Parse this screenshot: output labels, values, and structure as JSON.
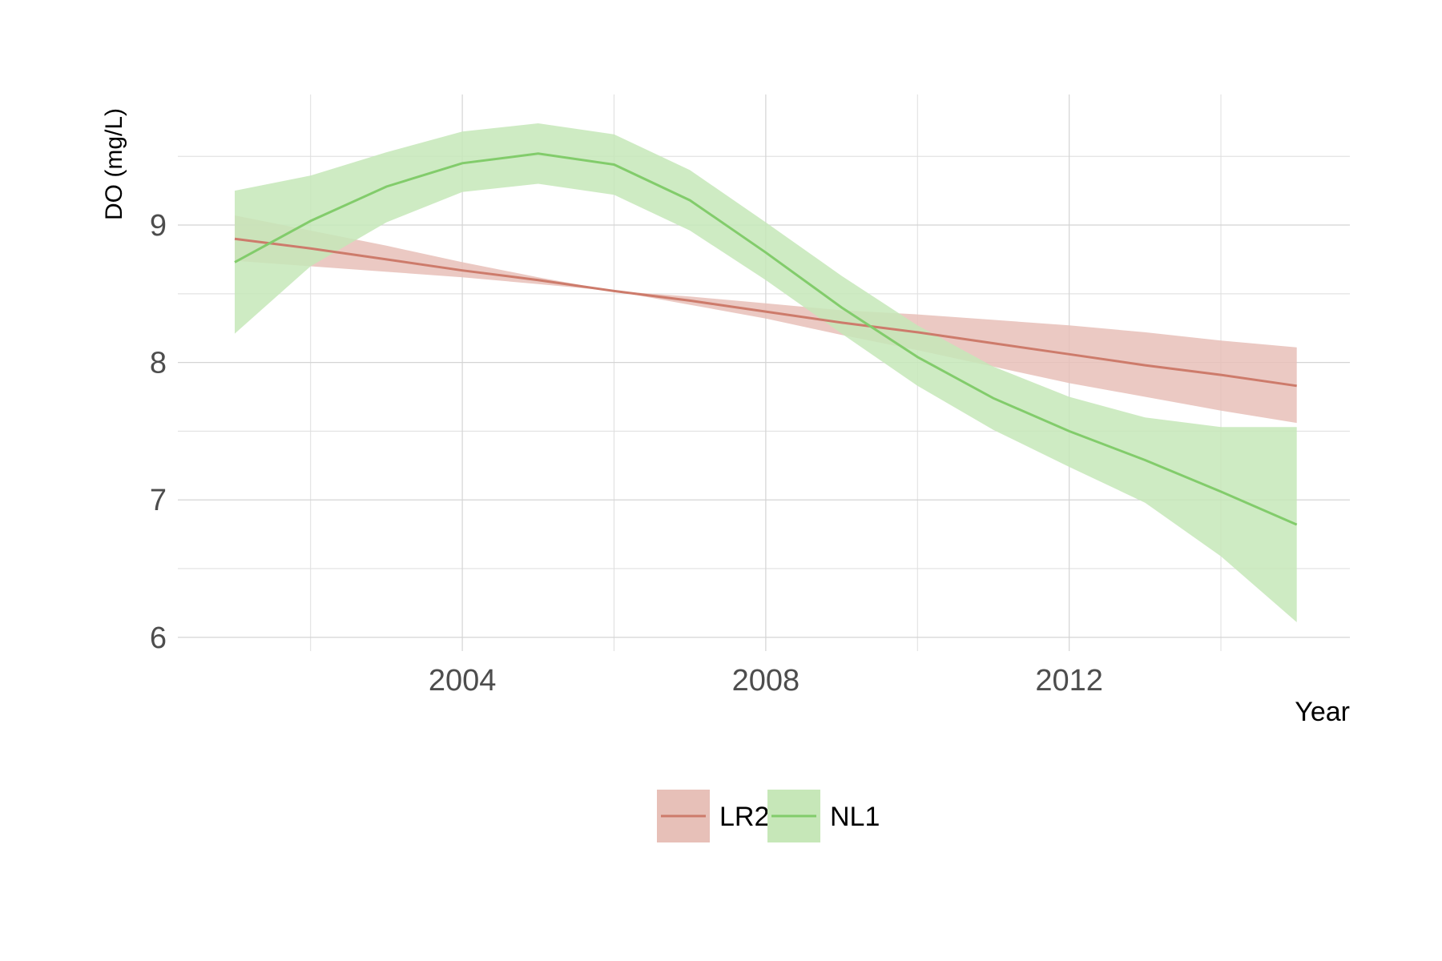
{
  "chart_data": {
    "type": "line",
    "xlabel": "Year",
    "ylabel": "DO (mg/L)",
    "xlim": [
      2000.25,
      2015.7
    ],
    "ylim": [
      5.9,
      9.95
    ],
    "x_ticks": [
      2004,
      2008,
      2012
    ],
    "x_minor_ticks": [
      2002,
      2006,
      2010,
      2014
    ],
    "y_ticks": [
      6,
      7,
      8,
      9
    ],
    "y_minor_ticks": [
      6.5,
      7.5,
      8.5,
      9.5
    ],
    "grid": true,
    "legend_position": "bottom",
    "series": [
      {
        "name": "LR2",
        "color": "#cd7b6b",
        "fill": "#e7c0b8",
        "x": [
          2001,
          2002,
          2003,
          2004,
          2005,
          2006,
          2007,
          2008,
          2009,
          2010,
          2011,
          2012,
          2013,
          2014,
          2015
        ],
        "y": [
          8.9,
          8.83,
          8.75,
          8.67,
          8.6,
          8.52,
          8.45,
          8.37,
          8.29,
          8.22,
          8.14,
          8.06,
          7.98,
          7.91,
          7.83
        ],
        "lower": [
          8.74,
          8.7,
          8.66,
          8.62,
          8.57,
          8.52,
          8.42,
          8.32,
          8.2,
          8.09,
          7.97,
          7.85,
          7.75,
          7.65,
          7.56
        ],
        "upper": [
          9.07,
          8.96,
          8.85,
          8.73,
          8.62,
          8.52,
          8.48,
          8.43,
          8.38,
          8.35,
          8.31,
          8.27,
          8.22,
          8.16,
          8.11
        ]
      },
      {
        "name": "NL1",
        "color": "#82cc6b",
        "fill": "#c6e7b8",
        "x": [
          2001,
          2002,
          2003,
          2004,
          2005,
          2006,
          2007,
          2008,
          2009,
          2010,
          2011,
          2012,
          2013,
          2014,
          2015
        ],
        "y": [
          8.73,
          9.03,
          9.28,
          9.45,
          9.52,
          9.44,
          9.18,
          8.8,
          8.4,
          8.04,
          7.74,
          7.5,
          7.29,
          7.06,
          6.82
        ],
        "lower": [
          8.21,
          8.7,
          9.02,
          9.24,
          9.3,
          9.22,
          8.96,
          8.6,
          8.21,
          7.83,
          7.51,
          7.24,
          6.98,
          6.59,
          6.11
        ],
        "upper": [
          9.25,
          9.36,
          9.53,
          9.68,
          9.74,
          9.66,
          9.4,
          9.02,
          8.63,
          8.27,
          7.97,
          7.75,
          7.6,
          7.53,
          7.53
        ]
      }
    ]
  }
}
